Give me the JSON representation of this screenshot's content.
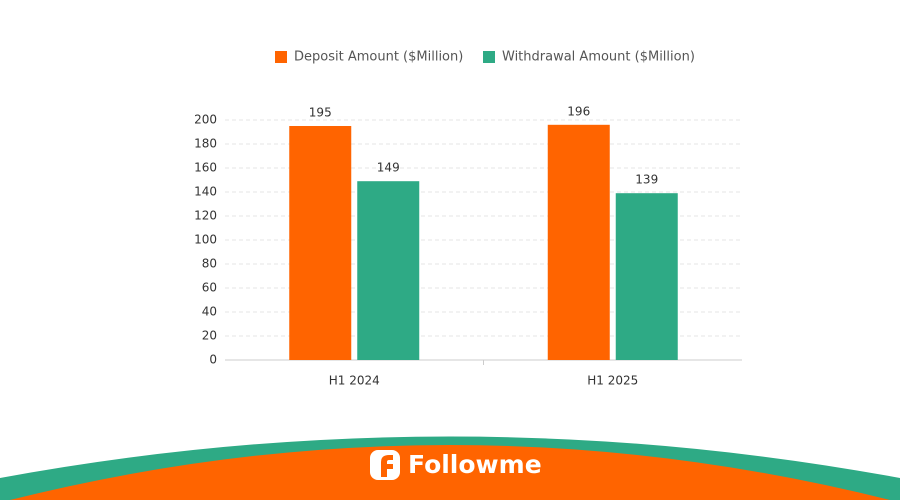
{
  "chart_data": {
    "type": "bar",
    "categories": [
      "H1 2024",
      "H1 2025"
    ],
    "series": [
      {
        "name": "Deposit Amount ($Million)",
        "color": "#ff6400",
        "values": [
          195,
          196
        ]
      },
      {
        "name": "Withdrawal Amount ($Million)",
        "color": "#2eaa85",
        "values": [
          149,
          139
        ]
      }
    ],
    "ylim": [
      0,
      200
    ],
    "yticks": [
      0,
      20,
      40,
      60,
      80,
      100,
      120,
      140,
      160,
      180,
      200
    ],
    "grid": true,
    "legend": "top"
  },
  "footer": {
    "brand": "Followme"
  }
}
